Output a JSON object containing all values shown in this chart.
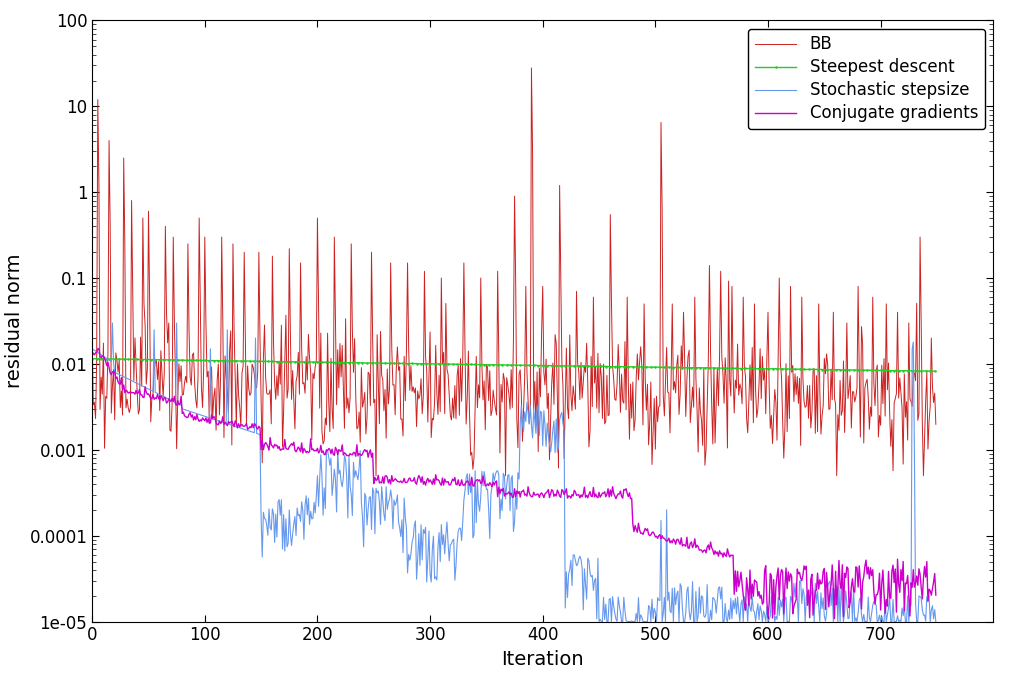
{
  "title": "",
  "xlabel": "Iteration",
  "ylabel": "residual norm",
  "xlim": [
    0,
    800
  ],
  "ylim_log": [
    1e-05,
    100
  ],
  "x_ticks": [
    0,
    100,
    200,
    300,
    400,
    500,
    600,
    700
  ],
  "y_tick_labels": [
    "1e-05",
    "0.0001",
    "0.001",
    "0.01",
    "0.1",
    "1",
    "10",
    "100"
  ],
  "legend_entries": [
    "BB",
    "Steepest descent",
    "Stochastic stepsize",
    "Conjugate gradients"
  ],
  "colors": {
    "BB": "#cc2222",
    "Steepest": "#22cc22",
    "Stochastic": "#6699ee",
    "Conjugate": "#cc00cc"
  },
  "n_iterations": 750,
  "background_color": "#ffffff",
  "figsize": [
    10.24,
    6.83
  ],
  "dpi": 100
}
